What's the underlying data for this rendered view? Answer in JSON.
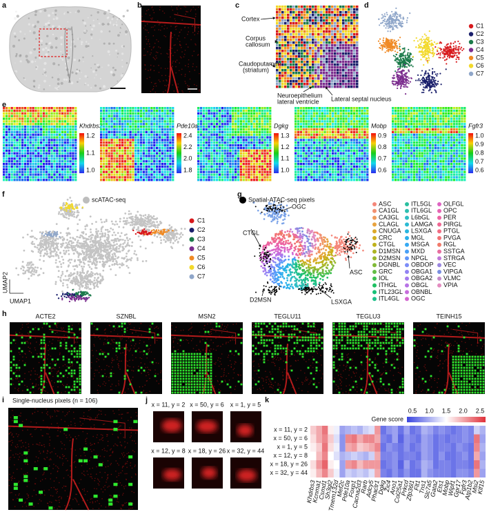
{
  "panel_labels": [
    "a",
    "b",
    "c",
    "d",
    "e",
    "f",
    "g",
    "h",
    "i",
    "j",
    "k"
  ],
  "c": {
    "annotations": [
      [
        "Cortex"
      ],
      [
        "Corpus",
        "callosum"
      ],
      [
        "Caudoputamen",
        "(striatum)"
      ],
      [
        "Neuroepithelium",
        "lateral ventricle"
      ],
      [
        "Lateral septal nucleus"
      ]
    ]
  },
  "d": {
    "clusters": [
      {
        "name": "C1",
        "color": "#d7191c"
      },
      {
        "name": "C2",
        "color": "#1a1f6b"
      },
      {
        "name": "C3",
        "color": "#1b7a4a"
      },
      {
        "name": "C4",
        "color": "#7b2d8e"
      },
      {
        "name": "C5",
        "color": "#f08a24"
      },
      {
        "name": "C6",
        "color": "#f2d92b"
      },
      {
        "name": "C7",
        "color": "#8fa6c9"
      }
    ]
  },
  "e": {
    "maps": [
      {
        "gene": "Khdrbs3",
        "colorbar_ticks": [
          "1.2",
          "1.1",
          "1.0"
        ]
      },
      {
        "gene": "Pde10a",
        "colorbar_ticks": [
          "2.4",
          "2.2",
          "2.0",
          "1.8"
        ]
      },
      {
        "gene": "Dgkg",
        "colorbar_ticks": [
          "1.3",
          "1.2",
          "1.1",
          "1.0"
        ]
      },
      {
        "gene": "Mobp",
        "colorbar_ticks": [
          "0.9",
          "0.8",
          "0.7",
          "0.6"
        ]
      },
      {
        "gene": "Fgfr3",
        "colorbar_ticks": [
          "1.0",
          "0.9",
          "0.8",
          "0.7",
          "0.6"
        ]
      }
    ]
  },
  "f": {
    "legend_title": "scATAC-seq",
    "clusters": [
      "C1",
      "C2",
      "C3",
      "C4",
      "C5",
      "C6",
      "C7"
    ],
    "x_axis": "UMAP1",
    "y_axis": "UMAP2"
  },
  "g": {
    "legend_title": "Spatial-ATAC-seq pixels",
    "annotations": [
      "OGC",
      "CTGL",
      "ASC",
      "D2MSN",
      "LSXGA"
    ],
    "cell_types": [
      {
        "name": "ASC",
        "color": "#f4877a"
      },
      {
        "name": "CA1GL",
        "color": "#f19070"
      },
      {
        "name": "CA3GL",
        "color": "#ee9a5c"
      },
      {
        "name": "CLAGL",
        "color": "#e8a33f"
      },
      {
        "name": "CNUGA",
        "color": "#dca92a"
      },
      {
        "name": "CRC",
        "color": "#cfae1e"
      },
      {
        "name": "CTGL",
        "color": "#bfb21c"
      },
      {
        "name": "D1MSN",
        "color": "#adb523"
      },
      {
        "name": "D2MSN",
        "color": "#98b82d"
      },
      {
        "name": "DGNBL",
        "color": "#80ba38"
      },
      {
        "name": "GRC",
        "color": "#63bd45"
      },
      {
        "name": "IOL",
        "color": "#3dbf52"
      },
      {
        "name": "ITHGL",
        "color": "#1fc063"
      },
      {
        "name": "ITL23GL",
        "color": "#16c077"
      },
      {
        "name": "ITL4GL",
        "color": "#1fc08b"
      },
      {
        "name": "ITL5GL",
        "color": "#2abf9f"
      },
      {
        "name": "ITL6GL",
        "color": "#2ebfb1"
      },
      {
        "name": "L6bGL",
        "color": "#2ebdc3"
      },
      {
        "name": "LAMGA",
        "color": "#2bbad3"
      },
      {
        "name": "LSXGA",
        "color": "#28b6e0"
      },
      {
        "name": "MGL",
        "color": "#2ab0ea"
      },
      {
        "name": "MSGA",
        "color": "#35a9f2"
      },
      {
        "name": "MXD",
        "color": "#48a0f7"
      },
      {
        "name": "NPGL",
        "color": "#6196f9"
      },
      {
        "name": "OBDOP",
        "color": "#7b8cf8"
      },
      {
        "name": "OBGA1",
        "color": "#9283f4"
      },
      {
        "name": "OBGA2",
        "color": "#a57bee"
      },
      {
        "name": "OBGL",
        "color": "#b773e6"
      },
      {
        "name": "OBNBL",
        "color": "#c76ddc"
      },
      {
        "name": "OGC",
        "color": "#d468d0"
      },
      {
        "name": "OLFGL",
        "color": "#de65c2"
      },
      {
        "name": "OPC",
        "color": "#e664b3"
      },
      {
        "name": "PER",
        "color": "#ec65a3"
      },
      {
        "name": "PIRGL",
        "color": "#ef6893"
      },
      {
        "name": "PTGL",
        "color": "#f16d84"
      },
      {
        "name": "PVGA",
        "color": "#f27376"
      },
      {
        "name": "RGL",
        "color": "#f07a6a"
      },
      {
        "name": "SSTGA",
        "color": "#e86fa0"
      },
      {
        "name": "STRGA",
        "color": "#c07ad8"
      },
      {
        "name": "VEC",
        "color": "#9a86e0"
      },
      {
        "name": "VIPGA",
        "color": "#7a8fe0"
      },
      {
        "name": "VLMC",
        "color": "#c58ac8"
      },
      {
        "name": "VPIA",
        "color": "#e38cc0"
      }
    ]
  },
  "h": {
    "panels": [
      "ACTE2",
      "SZNBL",
      "MSN2",
      "TEGLU11",
      "TEGLU3",
      "TEINH15"
    ]
  },
  "i": {
    "title": "Single-nucleus pixels (n = 106)"
  },
  "j": {
    "crops": [
      "x = 11, y = 2",
      "x = 50, y = 6",
      "x = 1, y = 5",
      "x = 12, y = 8",
      "x = 18, y = 26",
      "x = 32, y = 44"
    ]
  },
  "k": {
    "colorbar_title": "Gene score",
    "colorbar_ticks": [
      "0.5",
      "1.0",
      "1.5",
      "2.0",
      "2.5"
    ],
    "colorbar_lim": [
      0.3,
      2.7
    ],
    "rows": [
      "x = 11, y = 2",
      "x = 50, y = 6",
      "x = 1, y = 5",
      "x = 12, y = 8",
      "x = 18, y = 26",
      "x = 32, y = 44"
    ],
    "genes": [
      "Khdrbs3",
      "Kcnma1",
      "Csmd1",
      "Sh3gl2",
      "Tmem132d",
      "Mef2c",
      "Pde10a",
      "Foxp1",
      "Cacna2d3",
      "Rarb",
      "Adcy5",
      "Phactr1",
      "Dgkg",
      "Zic4",
      "Ano1",
      "Col25a1",
      "Prkcd",
      "Zfp36l1",
      "Flt1",
      "Tns1",
      "Slc7a5",
      "Gata2",
      "Ets1",
      "Mobp",
      "Wipf1",
      "Gpr17",
      "Fgfr3",
      "Atp1b2",
      "Msi2",
      "Klf15"
    ],
    "values": [
      [
        1.8,
        2.0,
        2.3,
        1.6,
        1.4,
        0.9,
        1.0,
        1.1,
        1.0,
        1.2,
        1.3,
        2.1,
        0.6,
        0.8,
        0.9,
        0.6,
        0.9,
        0.6,
        0.7,
        1.0,
        0.9,
        0.7,
        0.8,
        0.7,
        0.6,
        0.7,
        0.8,
        0.7,
        1.2,
        1.0
      ],
      [
        1.7,
        2.0,
        2.2,
        1.8,
        1.3,
        0.8,
        2.2,
        2.3,
        2.0,
        2.2,
        2.2,
        2.0,
        0.7,
        0.6,
        0.9,
        0.5,
        0.8,
        0.7,
        0.6,
        0.9,
        0.8,
        0.6,
        0.7,
        0.6,
        0.7,
        0.7,
        0.8,
        0.7,
        2.3,
        0.9
      ],
      [
        1.6,
        1.8,
        2.3,
        1.7,
        1.4,
        0.8,
        2.0,
        2.1,
        1.8,
        1.9,
        2.0,
        2.2,
        0.6,
        0.8,
        0.7,
        0.6,
        0.8,
        0.6,
        0.7,
        0.9,
        0.8,
        0.6,
        0.7,
        0.7,
        0.6,
        0.8,
        0.7,
        0.6,
        2.2,
        1.0
      ],
      [
        1.5,
        1.9,
        2.2,
        1.5,
        1.3,
        1.0,
        1.1,
        1.2,
        1.1,
        1.0,
        1.2,
        2.0,
        0.7,
        0.7,
        0.8,
        0.6,
        0.7,
        0.7,
        0.6,
        0.9,
        0.8,
        0.6,
        0.8,
        0.6,
        0.6,
        0.7,
        0.8,
        0.6,
        2.0,
        0.9
      ],
      [
        1.7,
        2.1,
        2.4,
        1.6,
        1.5,
        0.9,
        2.1,
        2.2,
        1.9,
        2.1,
        2.1,
        2.1,
        0.6,
        0.7,
        0.8,
        0.5,
        0.9,
        0.6,
        0.7,
        1.0,
        0.9,
        0.6,
        0.7,
        0.7,
        0.6,
        0.7,
        0.7,
        0.6,
        2.3,
        1.0
      ],
      [
        1.6,
        1.9,
        2.2,
        1.8,
        1.4,
        0.9,
        1.2,
        1.1,
        1.2,
        1.1,
        1.3,
        2.0,
        0.7,
        0.6,
        0.8,
        0.6,
        0.8,
        0.6,
        0.6,
        1.0,
        0.8,
        0.7,
        0.7,
        0.7,
        0.6,
        0.8,
        0.8,
        0.7,
        2.1,
        0.9
      ]
    ]
  }
}
